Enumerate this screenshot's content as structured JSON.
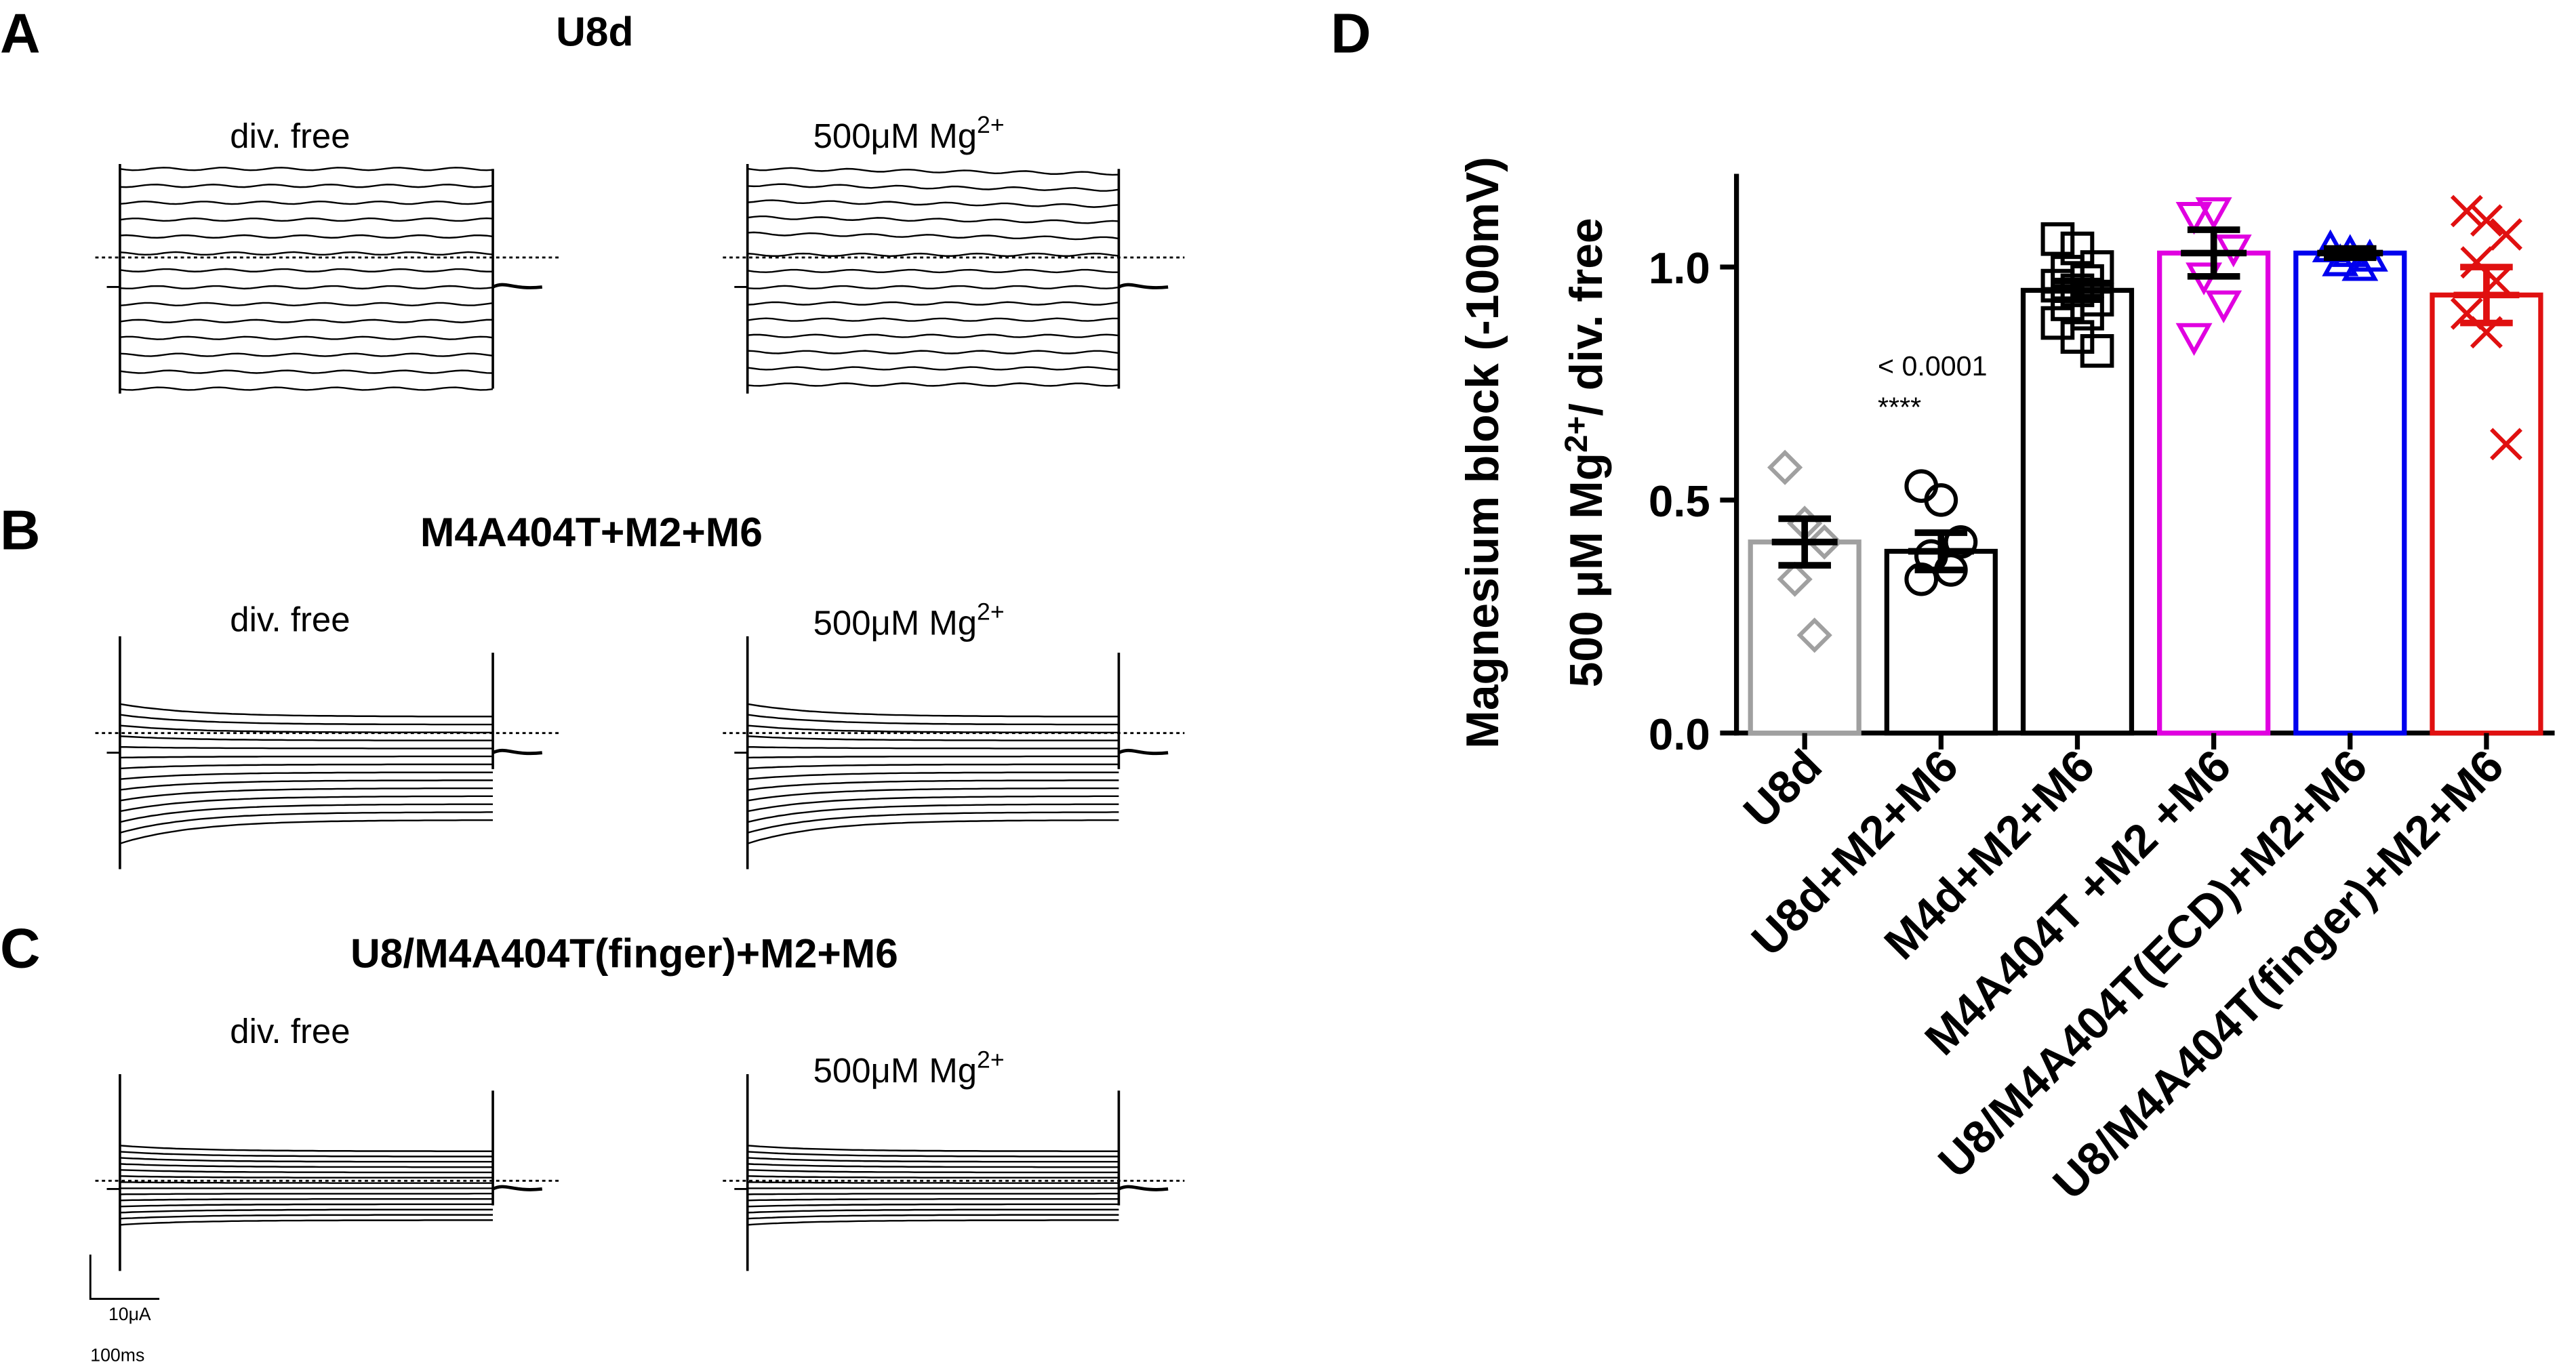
{
  "panels": [
    {
      "letter": "A",
      "title": "U8d",
      "left_label": "div. free",
      "right_label": [
        "500μM Mg",
        "2+"
      ]
    },
    {
      "letter": "B",
      "title": "M4A404T+M2+M6",
      "left_label": "div. free",
      "right_label": [
        "500μM Mg",
        "2+"
      ]
    },
    {
      "letter": "C",
      "title": "U8/M4A404T(finger)+M2+M6",
      "left_label": "div. free",
      "right_label": [
        "500μM Mg",
        "2+"
      ]
    }
  ],
  "scale_bar": {
    "current": "10μA",
    "time": "100ms"
  },
  "chart_data": {
    "type": "bar",
    "letter": "D",
    "ylabel": "Magnesium block (-100mV)",
    "ylabel2": [
      "500 μM Mg",
      "2+",
      "/ div. free"
    ],
    "categories": [
      "U8d",
      "U8d+M2+M6",
      "M4d+M2+M6",
      "M4A404T +M2 +M6",
      "U8/M4A404T(ECD)+M2+M6",
      "U8/M4A404T(finger)+M2+M6"
    ],
    "values": [
      0.41,
      0.39,
      0.95,
      1.03,
      1.03,
      0.94
    ],
    "errors": [
      0.05,
      0.04,
      0.02,
      0.05,
      0.01,
      0.06
    ],
    "colors": [
      "#a0a0a0",
      "#000000",
      "#000000",
      "#e000e0",
      "#0000ee",
      "#e01010"
    ],
    "error_colors": [
      "#000000",
      "#000000",
      "#000000",
      "#000000",
      "#000000",
      "#e01010"
    ],
    "markers": [
      "diamond",
      "circle",
      "square",
      "triangle-down",
      "triangle-up",
      "x"
    ],
    "points": [
      [
        0.57,
        0.45,
        0.41,
        0.33,
        0.21
      ],
      [
        0.53,
        0.5,
        0.41,
        0.38,
        0.35,
        0.33
      ],
      [
        1.06,
        1.04,
        1.0,
        0.99,
        0.97,
        0.96,
        0.95,
        0.93,
        0.92,
        0.9,
        0.88,
        0.85,
        0.82
      ],
      [
        1.11,
        1.12,
        1.04,
        0.98,
        0.92,
        0.85
      ],
      [
        1.04,
        1.03,
        1.02,
        1.01,
        1.0
      ],
      [
        1.12,
        1.1,
        1.07,
        1.01,
        0.97,
        0.9,
        0.86,
        0.62
      ]
    ],
    "annotation": [
      "< 0.0001",
      "****"
    ],
    "ylim": [
      0,
      1.2
    ],
    "yticks": [
      {
        "value": 0,
        "label": "0.0"
      },
      {
        "value": 0.5,
        "label": "0.5"
      },
      {
        "value": 1,
        "label": "1.0"
      }
    ]
  }
}
